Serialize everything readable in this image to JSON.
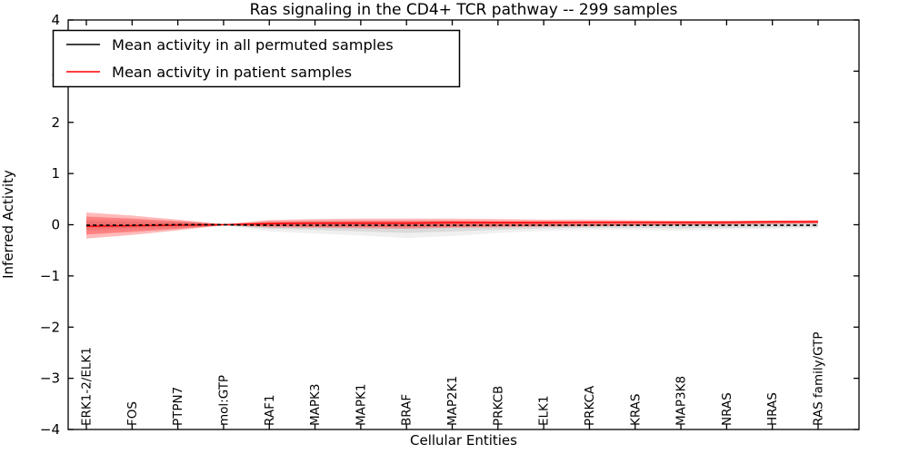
{
  "title": "Ras signaling in the CD4+ TCR pathway -- 299 samples",
  "axes": {
    "ylabel": "Inferred Activity",
    "xlabel": "Cellular Entities"
  },
  "legend": {
    "items": [
      {
        "label": "Mean activity in all permuted samples",
        "color": "#000000"
      },
      {
        "label": "Mean activity in patient samples",
        "color": "#ff0000"
      }
    ]
  },
  "colors": {
    "patient_line": "#ff0000",
    "permuted_line": "#000000",
    "patient_band": "rgba(255,0,0,0.27)",
    "patient_band_inner": "rgba(255,0,0,0.30)",
    "permuted_band": "rgba(0,0,0,0.06)",
    "permuted_band_inner": "rgba(0,0,0,0.09)",
    "frame": "#000000",
    "background": "#ffffff"
  },
  "chart_data": {
    "type": "line",
    "title": "Ras signaling in the CD4+ TCR pathway -- 299 samples",
    "xlabel": "Cellular Entities",
    "ylabel": "Inferred Activity",
    "ylim": [
      -4,
      4
    ],
    "yticks": [
      4,
      3,
      2,
      1,
      0,
      -1,
      -2,
      -3,
      -4
    ],
    "grid": false,
    "legend_position": "upper left",
    "categories": [
      "ERK1-2/ELK1",
      "FOS",
      "PTPN7",
      "mol:GTP",
      "RAF1",
      "MAPK3",
      "MAPK1",
      "BRAF",
      "MAP2K1",
      "PRKCB",
      "ELK1",
      "PRKCA",
      "KRAS",
      "MAP3K8",
      "NRAS",
      "HRAS",
      "RAS family/GTP"
    ],
    "bands": [
      {
        "name": "permuted-band-outer",
        "color": "rgba(0,0,0,0.06)",
        "upper": [
          0.1,
          0.09,
          0.06,
          0.01,
          0.07,
          0.08,
          0.08,
          0.08,
          0.08,
          0.07,
          0.06,
          0.06,
          0.06,
          0.06,
          0.07,
          0.07,
          0.07
        ],
        "lower": [
          -0.12,
          -0.1,
          -0.07,
          -0.01,
          -0.13,
          -0.17,
          -0.21,
          -0.26,
          -0.22,
          -0.16,
          -0.12,
          -0.1,
          -0.1,
          -0.12,
          -0.09,
          -0.08,
          -0.07
        ]
      },
      {
        "name": "permuted-band-inner",
        "color": "rgba(0,0,0,0.09)",
        "upper": [
          0.06,
          0.05,
          0.04,
          0.01,
          0.04,
          0.05,
          0.05,
          0.05,
          0.05,
          0.04,
          0.04,
          0.04,
          0.04,
          0.04,
          0.04,
          0.04,
          0.04
        ],
        "lower": [
          -0.07,
          -0.06,
          -0.04,
          -0.01,
          -0.08,
          -0.1,
          -0.13,
          -0.16,
          -0.13,
          -0.1,
          -0.07,
          -0.06,
          -0.06,
          -0.07,
          -0.06,
          -0.05,
          -0.04
        ]
      },
      {
        "name": "patient-band-outer",
        "color": "rgba(255,0,0,0.27)",
        "upper": [
          0.24,
          0.18,
          0.1,
          0.01,
          0.09,
          0.11,
          0.12,
          0.12,
          0.12,
          0.11,
          0.1,
          0.1,
          0.09,
          0.08,
          0.08,
          0.08,
          0.09
        ],
        "lower": [
          -0.27,
          -0.2,
          -0.11,
          -0.01,
          -0.05,
          -0.06,
          -0.07,
          -0.08,
          -0.06,
          -0.05,
          -0.04,
          -0.03,
          -0.02,
          -0.01,
          0.0,
          0.01,
          0.02
        ]
      },
      {
        "name": "patient-band-inner",
        "color": "rgba(255,0,0,0.30)",
        "upper": [
          0.16,
          0.12,
          0.07,
          0.01,
          0.06,
          0.07,
          0.08,
          0.08,
          0.08,
          0.07,
          0.07,
          0.06,
          0.06,
          0.06,
          0.06,
          0.07,
          0.07
        ],
        "lower": [
          -0.19,
          -0.14,
          -0.08,
          -0.01,
          -0.03,
          -0.04,
          -0.04,
          -0.05,
          -0.04,
          -0.03,
          -0.02,
          -0.02,
          -0.01,
          0.0,
          0.01,
          0.02,
          0.03
        ]
      }
    ],
    "series": [
      {
        "name": "patient-mean-line",
        "legend": "Mean activity in patient samples",
        "color": "#ff0000",
        "width": 1.4,
        "dash": "",
        "values": [
          -0.03,
          -0.02,
          -0.01,
          0.0,
          0.02,
          0.03,
          0.03,
          0.03,
          0.04,
          0.04,
          0.04,
          0.05,
          0.05,
          0.05,
          0.05,
          0.06,
          0.06
        ]
      },
      {
        "name": "permuted-mean-line",
        "legend": "Mean activity in all permuted samples",
        "color": "#000000",
        "width": 1.7,
        "dash": "4 3.2",
        "values": [
          -0.01,
          -0.01,
          0.0,
          0.0,
          -0.01,
          -0.01,
          -0.01,
          -0.01,
          -0.01,
          -0.01,
          -0.01,
          -0.01,
          -0.01,
          -0.01,
          -0.01,
          -0.01,
          -0.01
        ]
      }
    ]
  }
}
